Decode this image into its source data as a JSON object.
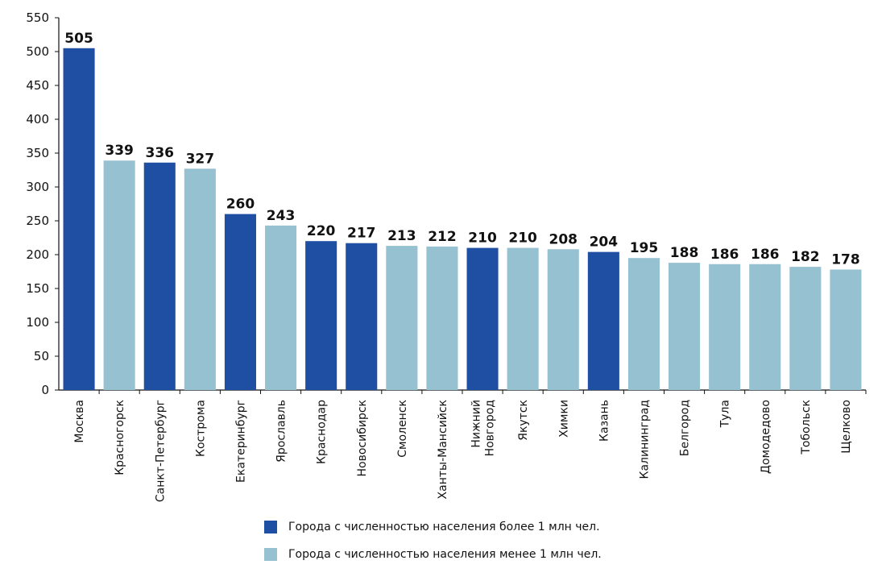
{
  "chart_data": {
    "type": "bar",
    "categories": [
      "Москва",
      "Красногорск",
      "Санкт-Петербург",
      "Кострома",
      "Екатеринбург",
      "Ярославль",
      "Краснодар",
      "Новосибирск",
      "Смоленск",
      "Ханты-Мансийск",
      "Нижний Новгород",
      "Якутск",
      "Химки",
      "Казань",
      "Калининград",
      "Белгород",
      "Тула",
      "Домодедово",
      "Тобольск",
      "Щелково"
    ],
    "category_lines": [
      [
        "Москва"
      ],
      [
        "Красногорск"
      ],
      [
        "Санкт-Петербург"
      ],
      [
        "Кострома"
      ],
      [
        "Екатеринбург"
      ],
      [
        "Ярославль"
      ],
      [
        "Краснодар"
      ],
      [
        "Новосибирск"
      ],
      [
        "Смоленск"
      ],
      [
        "Ханты-Мансийск"
      ],
      [
        "Нижний",
        "Новгород"
      ],
      [
        "Якутск"
      ],
      [
        "Химки"
      ],
      [
        "Казань"
      ],
      [
        "Калининград"
      ],
      [
        "Белгород"
      ],
      [
        "Тула"
      ],
      [
        "Домодедово"
      ],
      [
        "Тобольск"
      ],
      [
        "Щелково"
      ]
    ],
    "values": [
      505,
      339,
      336,
      327,
      260,
      243,
      220,
      217,
      213,
      212,
      210,
      210,
      208,
      204,
      195,
      188,
      186,
      186,
      182,
      178
    ],
    "groups": [
      "large",
      "small",
      "large",
      "small",
      "large",
      "small",
      "large",
      "large",
      "small",
      "small",
      "large",
      "small",
      "small",
      "large",
      "small",
      "small",
      "small",
      "small",
      "small",
      "small"
    ],
    "series": [
      {
        "key": "large",
        "name": "Города с численностью населения более 1 млн чел.",
        "color": "#1f4fa3"
      },
      {
        "key": "small",
        "name": "Города с численностью населения менее 1 млн чел.",
        "color": "#96c1d1"
      }
    ],
    "ylim": [
      0,
      550
    ],
    "yticks": [
      0,
      50,
      100,
      150,
      200,
      250,
      300,
      350,
      400,
      450,
      500,
      550
    ],
    "data_labels": true,
    "grid": false,
    "legend_position": "bottom",
    "title": "",
    "xlabel": "",
    "ylabel": ""
  }
}
